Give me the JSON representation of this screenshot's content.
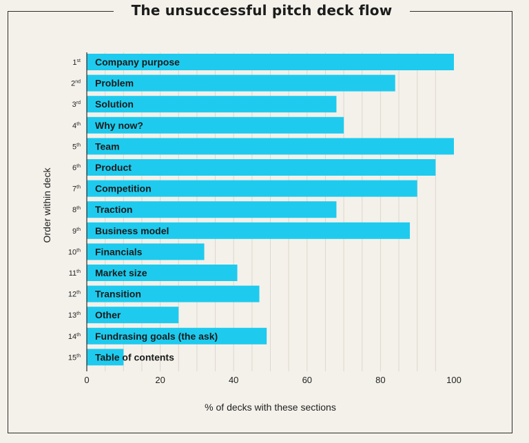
{
  "chart_data": {
    "type": "bar",
    "orientation": "horizontal",
    "title": "The unsuccessful pitch deck flow",
    "xlabel": "% of decks with these sections",
    "ylabel": "Order within deck",
    "xlim": [
      0,
      100
    ],
    "xticks": [
      "0",
      "20",
      "40",
      "60",
      "80",
      "100"
    ],
    "grid": true,
    "bar_color": "#1ecbee",
    "order_labels": [
      {
        "num": "1",
        "suffix": "st"
      },
      {
        "num": "2",
        "suffix": "nd"
      },
      {
        "num": "3",
        "suffix": "rd"
      },
      {
        "num": "4",
        "suffix": "th"
      },
      {
        "num": "5",
        "suffix": "th"
      },
      {
        "num": "6",
        "suffix": "th"
      },
      {
        "num": "7",
        "suffix": "th"
      },
      {
        "num": "8",
        "suffix": "th"
      },
      {
        "num": "9",
        "suffix": "th"
      },
      {
        "num": "10",
        "suffix": "th"
      },
      {
        "num": "11",
        "suffix": "th"
      },
      {
        "num": "12",
        "suffix": "th"
      },
      {
        "num": "13",
        "suffix": "th"
      },
      {
        "num": "14",
        "suffix": "th"
      },
      {
        "num": "15",
        "suffix": "th"
      }
    ],
    "categories": [
      "Company purpose",
      "Problem",
      "Solution",
      "Why now?",
      "Team",
      "Product",
      "Competition",
      "Traction",
      "Business model",
      "Financials",
      "Market size",
      "Transition",
      "Other",
      "Fundrasing goals (the ask)",
      "Table of contents"
    ],
    "values": [
      100,
      84,
      68,
      70,
      100,
      95,
      90,
      68,
      88,
      32,
      41,
      47,
      25,
      49,
      10
    ]
  }
}
